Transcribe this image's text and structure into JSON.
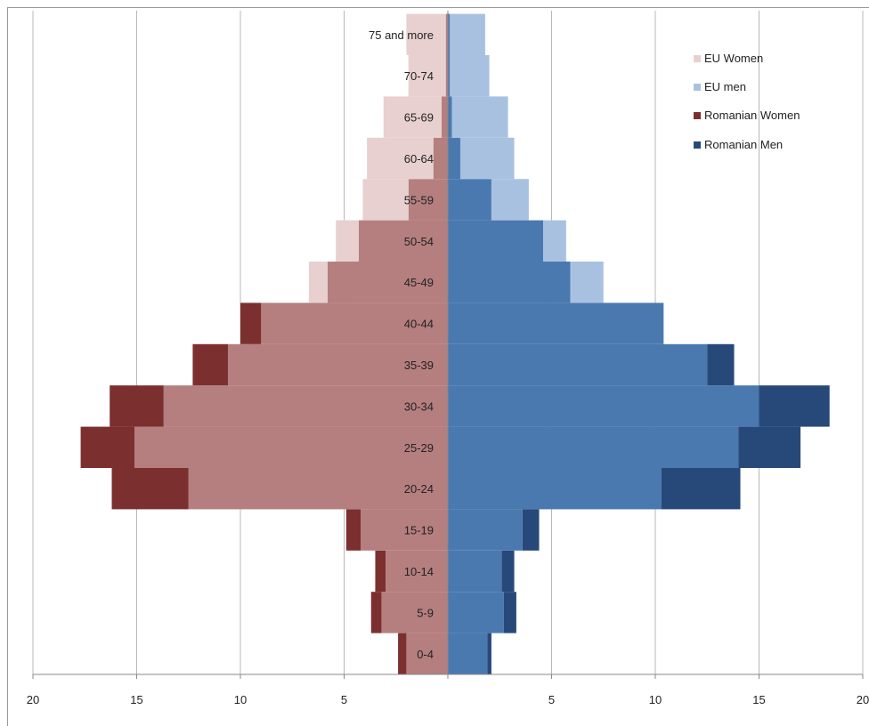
{
  "chart_data": {
    "type": "bar",
    "orientation": "horizontal",
    "subtype": "population-pyramid",
    "title": "",
    "xlabel": "",
    "ylabel": "",
    "xlim": [
      -20,
      20
    ],
    "x_ticks": [
      -20,
      -15,
      -10,
      -5,
      0,
      5,
      10,
      15,
      20
    ],
    "x_tick_labels": [
      "20",
      "15",
      "10",
      "5",
      "",
      "5",
      "10",
      "15",
      "20"
    ],
    "grid": "vertical",
    "legend_position": "top-right",
    "categories": [
      "0-4",
      "5-9",
      "10-14",
      "15-19",
      "20-24",
      "25-29",
      "30-34",
      "35-39",
      "40-44",
      "45-49",
      "50-54",
      "55-59",
      "60-64",
      "65-69",
      "70-74",
      "75 and more"
    ],
    "series": [
      {
        "name": "EU Women",
        "side": "left",
        "color": "#e8d0d0",
        "values": [
          2.0,
          3.2,
          3.0,
          4.2,
          12.5,
          15.1,
          13.7,
          10.6,
          9.0,
          6.7,
          5.4,
          4.1,
          3.9,
          3.1,
          1.9,
          2.0
        ]
      },
      {
        "name": "EU men",
        "side": "right",
        "color": "#a9c1e1",
        "values": [
          1.9,
          2.7,
          2.6,
          3.6,
          10.3,
          14.0,
          15.0,
          12.5,
          10.4,
          7.5,
          5.7,
          3.9,
          3.2,
          2.9,
          2.0,
          1.8
        ]
      },
      {
        "name": "Romanian Women",
        "side": "left",
        "color": "#7c2f2f",
        "values": [
          2.4,
          3.7,
          3.5,
          4.9,
          16.2,
          17.7,
          16.3,
          12.3,
          10.0,
          5.8,
          4.3,
          1.9,
          0.7,
          0.3,
          0.1,
          0.1
        ]
      },
      {
        "name": "Romanian Men",
        "side": "right",
        "color": "#27497a",
        "values": [
          2.1,
          3.3,
          3.2,
          4.4,
          14.1,
          17.0,
          18.4,
          13.8,
          10.4,
          5.9,
          4.6,
          2.1,
          0.6,
          0.2,
          0.1,
          0.1
        ]
      }
    ],
    "overlap_colors": {
      "women": "#b57f7f",
      "men": "#4a79b0"
    }
  }
}
